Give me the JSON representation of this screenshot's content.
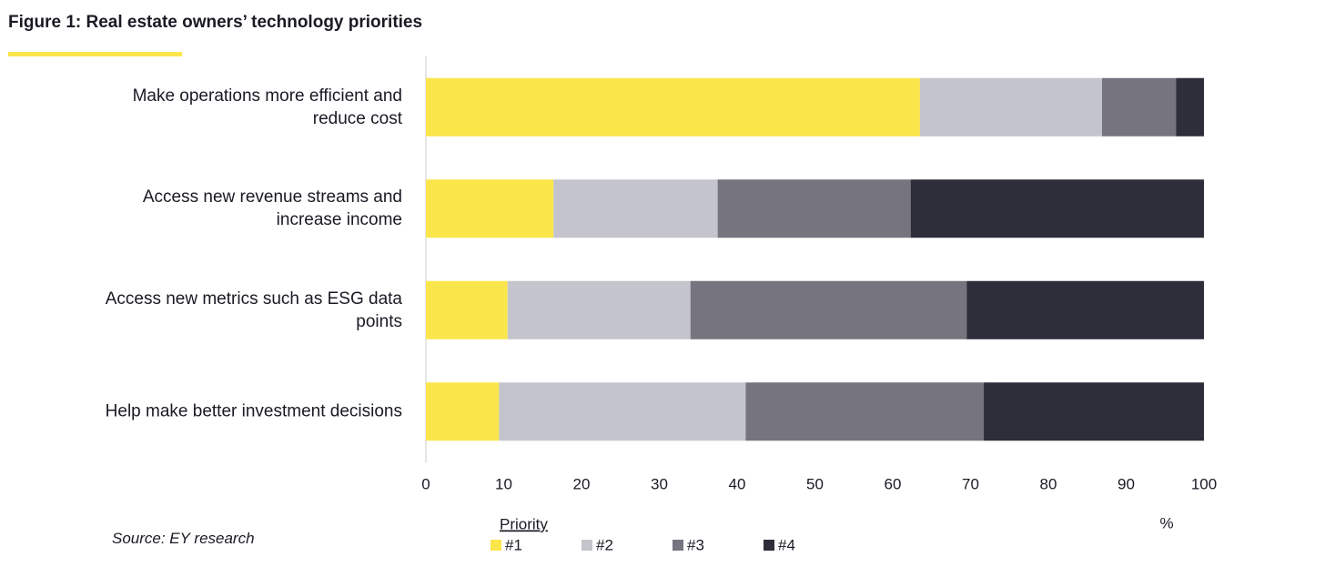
{
  "chart_data": {
    "type": "stacked_barh",
    "title": "Figure 1: Real estate owners’ technology priorities",
    "categories": [
      "Make operations more efficient and reduce cost",
      "Access new revenue streams and increase income",
      "Access new metrics such as ESG data points",
      "Help make better investment decisions"
    ],
    "legend_title": "Priority",
    "series": [
      {
        "name": "#1",
        "color": "#fae64b",
        "values": [
          63.5,
          16.4,
          10.5,
          9.4
        ]
      },
      {
        "name": "#2",
        "color": "#c4c4cc",
        "values": [
          23.4,
          21.1,
          23.5,
          31.7
        ]
      },
      {
        "name": "#3",
        "color": "#75747f",
        "values": [
          9.5,
          24.8,
          35.5,
          30.6
        ]
      },
      {
        "name": "#4",
        "color": "#2e2e3a",
        "values": [
          3.6,
          37.7,
          30.5,
          28.3
        ]
      }
    ],
    "xlim": [
      0,
      100
    ],
    "xticks": [
      0,
      10,
      20,
      30,
      40,
      50,
      60,
      70,
      80,
      90,
      100
    ],
    "xlabel": "%",
    "source": "Source: EY research",
    "grid": false
  }
}
